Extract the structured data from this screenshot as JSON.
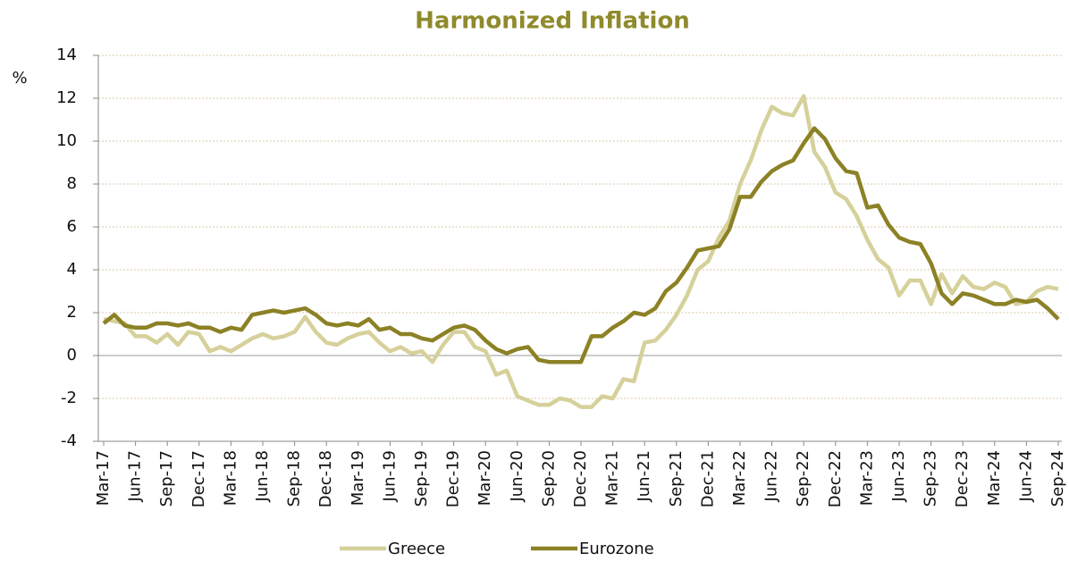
{
  "chart_data": {
    "type": "line",
    "title": "Harmonized Inflation",
    "y_label": "%",
    "categories": [
      "Mar-17",
      null,
      null,
      "Jun-17",
      null,
      null,
      "Sep-17",
      null,
      null,
      "Dec-17",
      null,
      null,
      "Mar-18",
      null,
      null,
      "Jun-18",
      null,
      null,
      "Sep-18",
      null,
      null,
      "Dec-18",
      null,
      null,
      "Mar-19",
      null,
      null,
      "Jun-19",
      null,
      null,
      "Sep-19",
      null,
      null,
      "Dec-19",
      null,
      null,
      "Mar-20",
      null,
      null,
      "Jun-20",
      null,
      null,
      "Sep-20",
      null,
      null,
      "Dec-20",
      null,
      null,
      "Mar-21",
      null,
      null,
      "Jun-21",
      null,
      null,
      "Sep-21",
      null,
      null,
      "Dec-21",
      null,
      null,
      "Mar-22",
      null,
      null,
      "Jun-22",
      null,
      null,
      "Sep-22",
      null,
      null,
      "Dec-22",
      null,
      null,
      "Mar-23",
      null,
      null,
      "Jun-23",
      null,
      null,
      "Sep-23",
      null,
      null,
      "Dec-23",
      null,
      null,
      "Mar-24",
      null,
      null,
      "Jun-24",
      null,
      null,
      "Sep-24"
    ],
    "series": [
      {
        "name": "Greece",
        "color": "#d6d09a",
        "values": [
          1.7,
          1.6,
          1.5,
          0.9,
          0.9,
          0.6,
          1.0,
          0.5,
          1.1,
          1.0,
          0.2,
          0.4,
          0.2,
          0.5,
          0.8,
          1.0,
          0.8,
          0.9,
          1.1,
          1.8,
          1.1,
          0.6,
          0.5,
          0.8,
          1.0,
          1.1,
          0.6,
          0.2,
          0.4,
          0.1,
          0.2,
          -0.3,
          0.5,
          1.1,
          1.1,
          0.4,
          0.2,
          -0.9,
          -0.7,
          -1.9,
          -2.1,
          -2.3,
          -2.3,
          -2.0,
          -2.1,
          -2.4,
          -2.4,
          -1.9,
          -2.0,
          -1.1,
          -1.2,
          0.6,
          0.7,
          1.2,
          1.9,
          2.8,
          4.0,
          4.4,
          5.5,
          6.3,
          8.0,
          9.1,
          10.5,
          11.6,
          11.3,
          11.2,
          12.1,
          9.5,
          8.8,
          7.6,
          7.3,
          6.5,
          5.4,
          4.5,
          4.1,
          2.8,
          3.5,
          3.5,
          2.4,
          3.8,
          2.9,
          3.7,
          3.2,
          3.1,
          3.4,
          3.2,
          2.4,
          2.5,
          3.0,
          3.2,
          3.1
        ]
      },
      {
        "name": "Eurozone",
        "color": "#8c8125",
        "values": [
          1.5,
          1.9,
          1.4,
          1.3,
          1.3,
          1.5,
          1.5,
          1.4,
          1.5,
          1.3,
          1.3,
          1.1,
          1.3,
          1.2,
          1.9,
          2.0,
          2.1,
          2.0,
          2.1,
          2.2,
          1.9,
          1.5,
          1.4,
          1.5,
          1.4,
          1.7,
          1.2,
          1.3,
          1.0,
          1.0,
          0.8,
          0.7,
          1.0,
          1.3,
          1.4,
          1.2,
          0.7,
          0.3,
          0.1,
          0.3,
          0.4,
          -0.2,
          -0.3,
          -0.3,
          -0.3,
          -0.3,
          0.9,
          0.9,
          1.3,
          1.6,
          2.0,
          1.9,
          2.2,
          3.0,
          3.4,
          4.1,
          4.9,
          5.0,
          5.1,
          5.9,
          7.4,
          7.4,
          8.1,
          8.6,
          8.9,
          9.1,
          9.9,
          10.6,
          10.1,
          9.2,
          8.6,
          8.5,
          6.9,
          7.0,
          6.1,
          5.5,
          5.3,
          5.2,
          4.3,
          2.9,
          2.4,
          2.9,
          2.8,
          2.6,
          2.4,
          2.4,
          2.6,
          2.5,
          2.6,
          2.2,
          1.7
        ]
      }
    ],
    "ylim": [
      -4,
      14
    ],
    "yticks": [
      -4,
      -2,
      0,
      2,
      4,
      6,
      8,
      10,
      12,
      14
    ],
    "grid": true,
    "legend": "bottom"
  }
}
